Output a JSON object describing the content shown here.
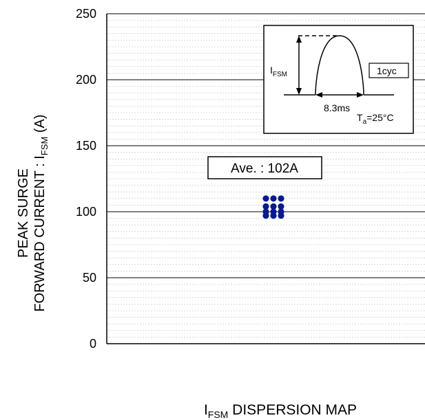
{
  "chart_data": {
    "type": "scatter",
    "title": "",
    "xlabel": {
      "main": "I",
      "sub": "FSM",
      "rest": " DISPERSION MAP"
    },
    "ylabel": {
      "line1": "PEAK SURGE",
      "line2_main": "FORWARD CURRENT : I",
      "line2_sub": "FSM",
      "line2_rest": " (A)"
    },
    "ylim": [
      0,
      250
    ],
    "yticks": [
      "0",
      "50",
      "100",
      "150",
      "200",
      "250"
    ],
    "grid": true,
    "series": [
      {
        "values": [
          110,
          110,
          110,
          104,
          104,
          104,
          100,
          100,
          100,
          97,
          97,
          97
        ]
      }
    ],
    "annotations": {
      "average": "Ave. : 102A",
      "inset": {
        "y_label_main": "I",
        "y_label_sub": "FSM",
        "cycle_label": "1cyc",
        "duration_label": "8.3ms",
        "temp_main": "T",
        "temp_sub": "a",
        "temp_rest": "=25°C"
      }
    },
    "colors": {
      "points": "#0a1a8c",
      "grid_minor": "#bdbdbd",
      "grid_major": "#000000"
    }
  }
}
